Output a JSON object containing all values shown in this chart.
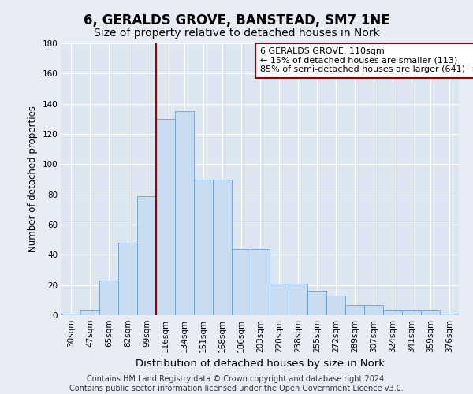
{
  "title": "6, GERALDS GROVE, BANSTEAD, SM7 1NE",
  "subtitle": "Size of property relative to detached houses in Nork",
  "xlabel": "Distribution of detached houses by size in Nork",
  "ylabel": "Number of detached properties",
  "categories": [
    "30sqm",
    "47sqm",
    "65sqm",
    "82sqm",
    "99sqm",
    "116sqm",
    "134sqm",
    "151sqm",
    "168sqm",
    "186sqm",
    "203sqm",
    "220sqm",
    "238sqm",
    "255sqm",
    "272sqm",
    "289sqm",
    "307sqm",
    "324sqm",
    "341sqm",
    "359sqm",
    "376sqm"
  ],
  "values": [
    1,
    3,
    23,
    48,
    79,
    130,
    135,
    90,
    90,
    44,
    44,
    21,
    21,
    16,
    13,
    7,
    7,
    3,
    3,
    3,
    1
  ],
  "bar_color": "#c9ddf2",
  "bar_edge_color": "#6090c0",
  "vline_color": "#990000",
  "annotation_text": "6 GERALDS GROVE: 110sqm\n← 15% of detached houses are smaller (113)\n85% of semi-detached houses are larger (641) →",
  "annotation_box_color": "white",
  "annotation_box_edge": "#990000",
  "ylim": [
    0,
    180
  ],
  "yticks": [
    0,
    20,
    40,
    60,
    80,
    100,
    120,
    140,
    160,
    180
  ],
  "footer": "Contains HM Land Registry data © Crown copyright and database right 2024.\nContains public sector information licensed under the Open Government Licence v3.0.",
  "bg_color": "#e8edf5",
  "plot_bg_color": "#dce6f0",
  "title_fontsize": 12,
  "subtitle_fontsize": 10,
  "xlabel_fontsize": 9.5,
  "ylabel_fontsize": 8.5,
  "tick_fontsize": 7.5,
  "footer_fontsize": 7,
  "annot_fontsize": 8
}
